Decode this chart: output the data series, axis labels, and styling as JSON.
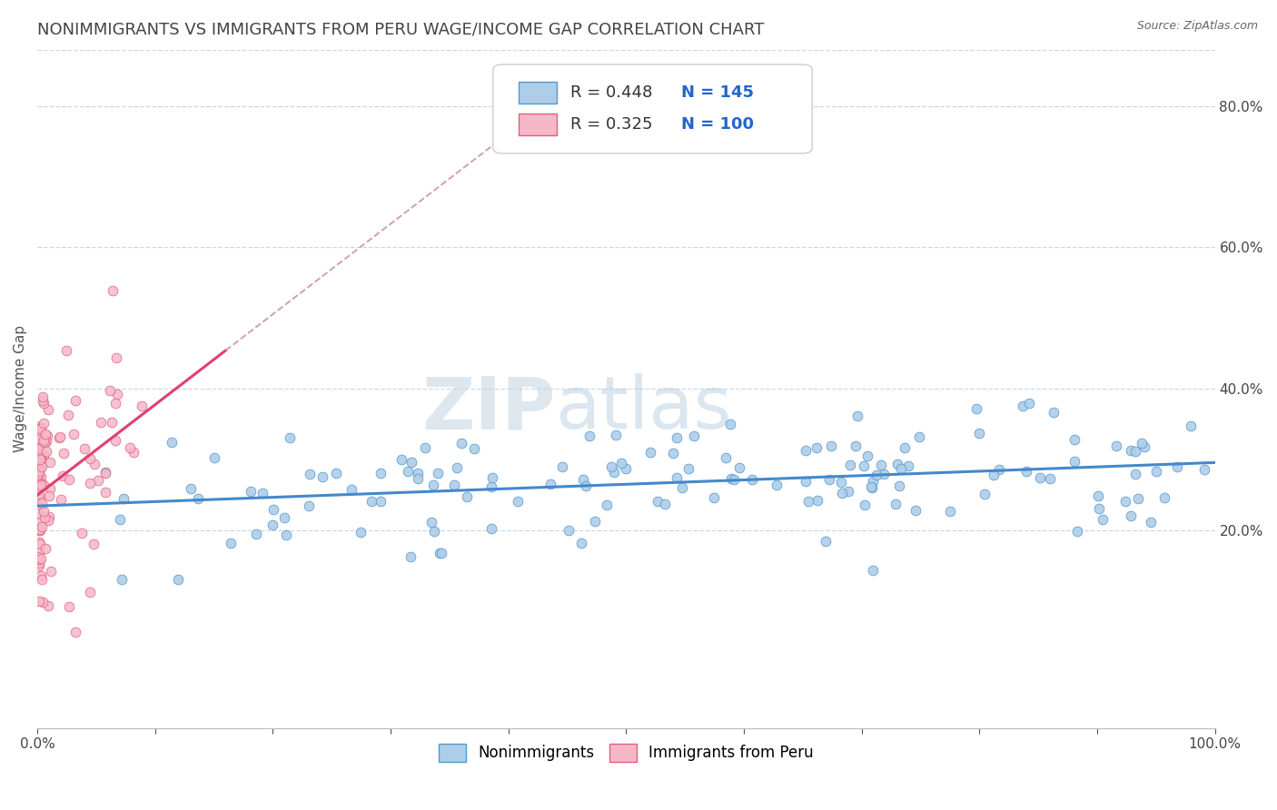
{
  "title": "NONIMMIGRANTS VS IMMIGRANTS FROM PERU WAGE/INCOME GAP CORRELATION CHART",
  "source": "Source: ZipAtlas.com",
  "ylabel": "Wage/Income Gap",
  "watermark_zip": "ZIP",
  "watermark_atlas": "atlas",
  "blue_R": 0.448,
  "blue_N": 145,
  "pink_R": 0.325,
  "pink_N": 100,
  "blue_color": "#aecde8",
  "pink_color": "#f5b8c8",
  "blue_edge_color": "#5599cc",
  "pink_edge_color": "#e06080",
  "blue_line_color": "#4488cc",
  "pink_line_color": "#e04070",
  "pink_dash_color": "#d0a0b0",
  "background_color": "#ffffff",
  "grid_color": "#c8d8e8",
  "title_color": "#444444",
  "source_color": "#666666",
  "legend_text_color": "#2266cc",
  "legend_N_color": "#2266cc",
  "xlim": [
    0.0,
    1.0
  ],
  "ylim": [
    -0.08,
    0.88
  ],
  "y_ticks_right": [
    0.2,
    0.4,
    0.6,
    0.8
  ],
  "y_tick_labels_right": [
    "20.0%",
    "40.0%",
    "60.0%",
    "80.0%"
  ],
  "seed_blue": 7,
  "seed_pink": 13
}
